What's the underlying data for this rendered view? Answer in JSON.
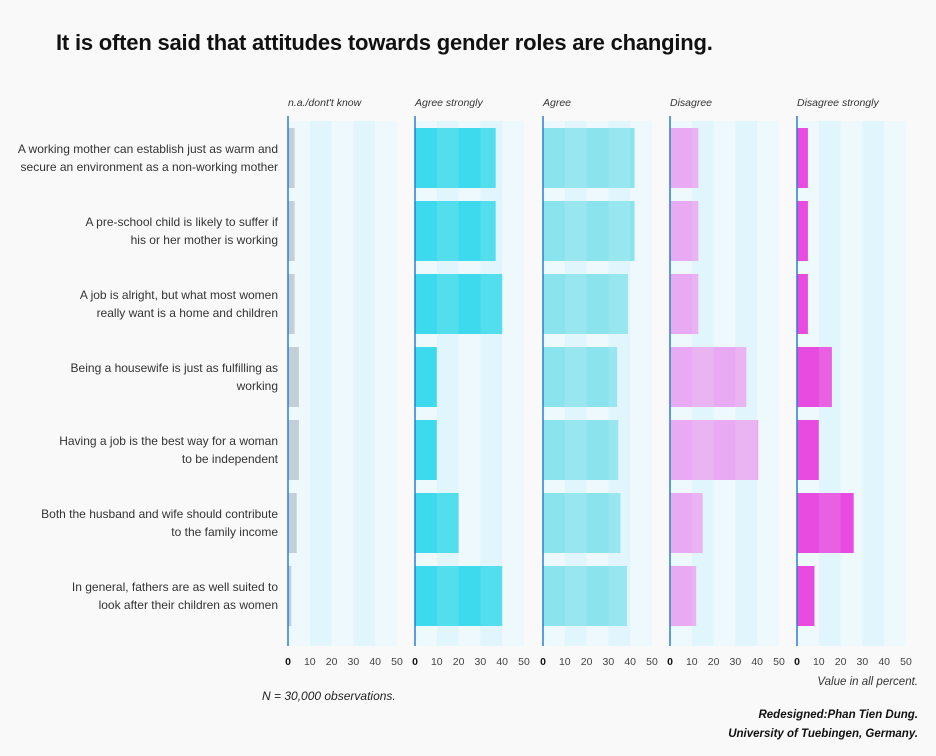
{
  "title": "It is often said that attitudes towards gender roles are changing.",
  "footer": {
    "n_note": "N = 30,000 observations.",
    "unit_note": "Value in all percent.",
    "credit_line1": "Redesigned:Phan Tien Dung.",
    "credit_line2": "University of Tuebingen, Germany."
  },
  "colors": {
    "background": "#f9f9f9",
    "panel_band_dark": "#e1f5fc",
    "panel_band_light": "#edf9fd",
    "axis_line": "#2b7fd4",
    "na": "#c2cfd6",
    "agree_strongly": "#3cdaec",
    "agree": "#8ae3ed",
    "disagree": "#e8aaf2",
    "disagree_strongly": "#e84bdf"
  },
  "chart_data": {
    "type": "bar",
    "orientation": "horizontal",
    "layout": "small-multiples",
    "xlim": [
      0,
      50
    ],
    "xticks": [
      "0",
      "10",
      "20",
      "30",
      "40",
      "50"
    ],
    "categories": [
      "A working mother can establish just as warm and secure an environment as a non-working mother",
      "A pre-school child is likely to suffer if his or her mother is working",
      "A job is alright, but what most women really want is a home and children",
      "Being a housewife is just as fulfilling as working",
      "Having a job is the best way for a woman to be independent",
      "Both the husband and wife should contribute to the family income",
      "In general, fathers are as well suited to look after their children as women"
    ],
    "category_lines": [
      [
        "A working mother can establish just as warm and",
        "secure an environment as a non-working mother"
      ],
      [
        "A pre-school child is likely to suffer if",
        "his or her mother is working"
      ],
      [
        "A job is alright, but what most women",
        "really want is a home and children"
      ],
      [
        "Being a housewife is just as fulfilling as",
        "working"
      ],
      [
        "Having a job is the best way for a woman",
        "to be independent"
      ],
      [
        "Both the husband and wife should contribute",
        "to the family income"
      ],
      [
        "In general, fathers are as well suited to",
        "look after their children as women"
      ]
    ],
    "series": [
      {
        "name": "n.a./dont't know",
        "color": "#c2cfd6",
        "values": [
          3,
          3,
          3,
          5,
          5,
          4,
          1.5
        ]
      },
      {
        "name": "Agree strongly",
        "color": "#3cdaec",
        "values": [
          37,
          37,
          40,
          10,
          10,
          20,
          40
        ]
      },
      {
        "name": "Agree",
        "color": "#8ae3ed",
        "values": [
          42,
          42,
          39,
          34,
          34.5,
          35.5,
          38.5
        ]
      },
      {
        "name": "Disagree",
        "color": "#e8aaf2",
        "values": [
          13,
          13,
          13,
          35,
          40.5,
          15,
          12
        ]
      },
      {
        "name": "Disagree strongly",
        "color": "#e84bdf",
        "values": [
          5,
          5,
          5,
          16,
          10,
          26,
          8
        ]
      }
    ]
  }
}
